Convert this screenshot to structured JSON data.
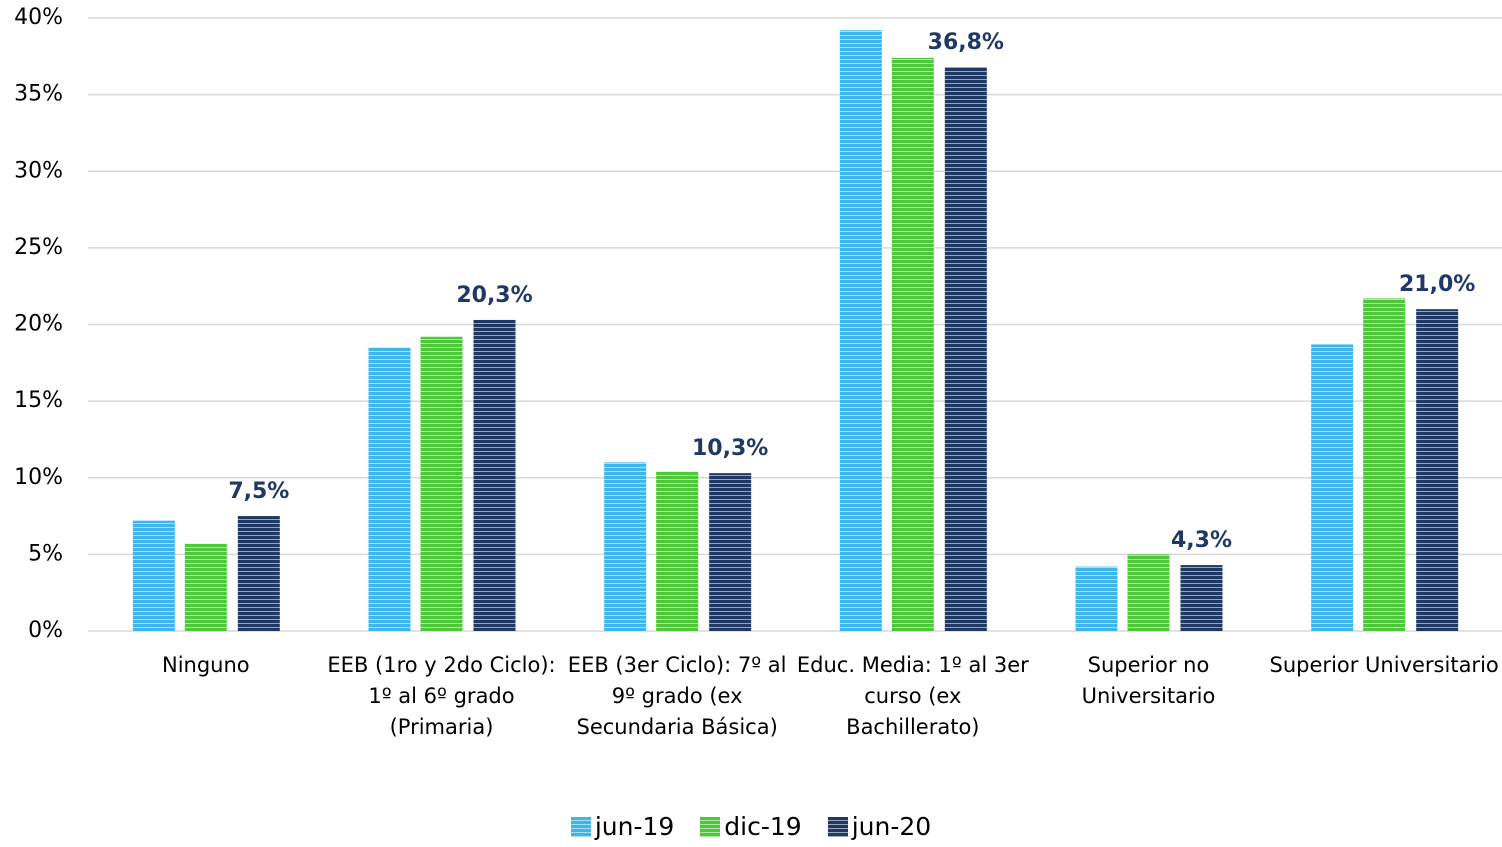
{
  "chart_data": {
    "type": "bar",
    "categories": [
      "Ninguno",
      "EEB (1ro y 2do Ciclo): 1º al 6º grado (Primaria)",
      "EEB (3er Ciclo): 7º al 9º grado (ex Secundaria Básica)",
      "Educ. Media: 1º al 3er curso (ex Bachillerato)",
      "Superior no Universitario",
      "Superior Universitario"
    ],
    "series": [
      {
        "name": "jun-19",
        "color": "#3db7e9",
        "values": [
          7.2,
          18.5,
          11.0,
          39.2,
          4.2,
          18.7
        ]
      },
      {
        "name": "dic-19",
        "color": "#4fc73a",
        "values": [
          5.7,
          19.2,
          10.4,
          37.4,
          5.0,
          21.7
        ]
      },
      {
        "name": "jun-20",
        "color": "#1f3864",
        "values": [
          7.5,
          20.3,
          10.3,
          36.8,
          4.3,
          21.0
        ],
        "value_labels": [
          "7,5%",
          "20,3%",
          "10,3%",
          "36,8%",
          "4,3%",
          "21,0%"
        ]
      }
    ],
    "ylim": [
      0,
      40
    ],
    "yticks": [
      {
        "value": 0,
        "label": "0%"
      },
      {
        "value": 5,
        "label": "5%"
      },
      {
        "value": 10,
        "label": "10%"
      },
      {
        "value": 15,
        "label": "15%"
      },
      {
        "value": 20,
        "label": "20%"
      },
      {
        "value": 25,
        "label": "25%"
      },
      {
        "value": 30,
        "label": "30%"
      },
      {
        "value": 35,
        "label": "35%"
      },
      {
        "value": 40,
        "label": "40%"
      }
    ],
    "grid": true,
    "legend": "bottom"
  }
}
